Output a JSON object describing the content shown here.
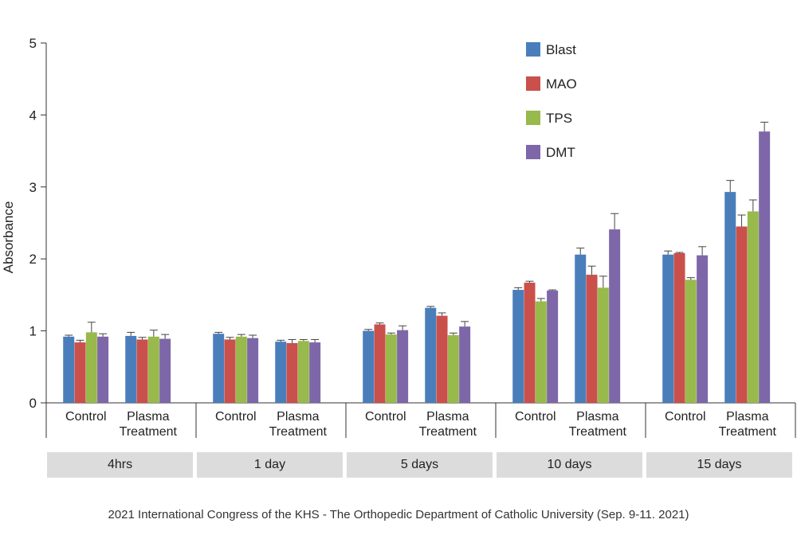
{
  "caption": "2021 International Congress of the KHS - The Orthopedic Department of Catholic University (Sep. 9-11. 2021)",
  "chart_data": {
    "type": "bar",
    "ylabel": "Absorbance",
    "ylim": [
      0,
      5
    ],
    "yticks": [
      "0",
      "1",
      "2",
      "3",
      "4",
      "5"
    ],
    "grid": false,
    "legend_position": "top-right",
    "groups": [
      {
        "label": "4hrs",
        "categories": [
          {
            "label": [
              "Control"
            ],
            "values": [
              0.92,
              0.84,
              0.98,
              0.92
            ],
            "errors": [
              0.02,
              0.03,
              0.14,
              0.04
            ]
          },
          {
            "label": [
              "Plasma",
              "Treatment"
            ],
            "values": [
              0.93,
              0.88,
              0.92,
              0.89
            ],
            "errors": [
              0.05,
              0.03,
              0.09,
              0.06
            ]
          }
        ]
      },
      {
        "label": "1 day",
        "categories": [
          {
            "label": [
              "Control"
            ],
            "values": [
              0.96,
              0.88,
              0.92,
              0.9
            ],
            "errors": [
              0.02,
              0.03,
              0.03,
              0.04
            ]
          },
          {
            "label": [
              "Plasma",
              "Treatment"
            ],
            "values": [
              0.85,
              0.83,
              0.86,
              0.84
            ],
            "errors": [
              0.02,
              0.05,
              0.02,
              0.04
            ]
          }
        ]
      },
      {
        "label": "5 days",
        "categories": [
          {
            "label": [
              "Control"
            ],
            "values": [
              1.0,
              1.09,
              0.95,
              1.01
            ],
            "errors": [
              0.02,
              0.02,
              0.02,
              0.06
            ]
          },
          {
            "label": [
              "Plasma",
              "Treatment"
            ],
            "values": [
              1.32,
              1.21,
              0.94,
              1.06
            ],
            "errors": [
              0.02,
              0.04,
              0.03,
              0.07
            ]
          }
        ]
      },
      {
        "label": "10 days",
        "categories": [
          {
            "label": [
              "Control"
            ],
            "values": [
              1.57,
              1.67,
              1.41,
              1.56
            ],
            "errors": [
              0.03,
              0.02,
              0.04,
              0.01
            ]
          },
          {
            "label": [
              "Plasma",
              "Treatment"
            ],
            "values": [
              2.06,
              1.78,
              1.6,
              2.41
            ],
            "errors": [
              0.09,
              0.12,
              0.16,
              0.22
            ]
          }
        ]
      },
      {
        "label": "15 days",
        "categories": [
          {
            "label": [
              "Control"
            ],
            "values": [
              2.06,
              2.08,
              1.71,
              2.05
            ],
            "errors": [
              0.05,
              0.01,
              0.03,
              0.12
            ]
          },
          {
            "label": [
              "Plasma",
              "Treatment"
            ],
            "values": [
              2.93,
              2.45,
              2.66,
              3.77
            ],
            "errors": [
              0.16,
              0.16,
              0.16,
              0.13
            ]
          }
        ]
      }
    ],
    "series": [
      {
        "name": "Blast",
        "color": "#4a7ebb"
      },
      {
        "name": "MAO",
        "color": "#c9504b"
      },
      {
        "name": "TPS",
        "color": "#98b94b"
      },
      {
        "name": "DMT",
        "color": "#7d67a8"
      }
    ]
  }
}
